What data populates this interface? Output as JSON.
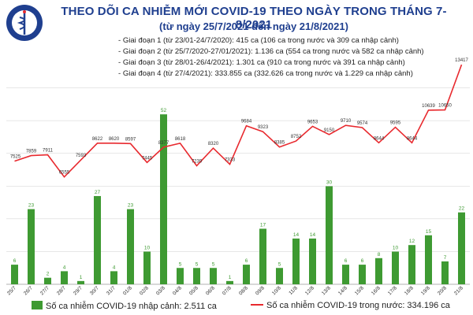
{
  "header": {
    "title": "THEO DÕI CA NHIỄM MỚI COVID-19 THEO NGÀY TRONG THÁNG 7-8/2021",
    "subtitle": "(từ ngày 25/7/2021 đến ngày 21/8/2021)",
    "logo_text": "BỘ Y TẾ",
    "phases": [
      "Giai đoạn 1 (từ 23/01-24/7/2020): 415 ca (106 ca trong nước và 309 ca nhập cảnh)",
      "Giai đoạn 2 (từ 25/7/2020-27/01/2021): 1.136 ca (554 ca trong nước và 582 ca nhập cảnh)",
      "Giai đoạn 3 (từ 28/01-26/4/2021): 1.301 ca (910 ca trong nước và 391 ca nhập cảnh)",
      "Giai đoạn 4 (từ 27/4/2021): 333.855 ca (332.626 ca trong nước và 1.229 ca nhập cảnh)"
    ]
  },
  "colors": {
    "title": "#1f3f8f",
    "bar": "#3e9a32",
    "line": "#e8292e",
    "grid": "#d9d9d9"
  },
  "legend": {
    "bar_label": "Số ca nhiễm COVID-19 nhập cảnh: 2.511 ca",
    "line_label": "Số ca nhiễm COVID-19 trong nước: 334.196 ca"
  },
  "chart_data": {
    "type": "bar+line",
    "categories": [
      "25/7",
      "26/7",
      "27/7",
      "28/7",
      "29/7",
      "30/7",
      "31/7",
      "01/8",
      "02/8",
      "03/8",
      "04/8",
      "05/8",
      "06/8",
      "07/8",
      "08/8",
      "09/8",
      "10/8",
      "11/8",
      "12/8",
      "13/8",
      "14/8",
      "15/8",
      "16/8",
      "17/8",
      "18/8",
      "19/8",
      "20/8",
      "21/8"
    ],
    "series": [
      {
        "name": "Số ca nhiễm COVID-19 nhập cảnh: 2.511 ca",
        "kind": "bar",
        "values": [
          6,
          23,
          2,
          4,
          1,
          27,
          4,
          23,
          10,
          52,
          5,
          5,
          5,
          1,
          6,
          17,
          5,
          14,
          14,
          30,
          6,
          6,
          8,
          10,
          12,
          15,
          7,
          22
        ]
      },
      {
        "name": "Số ca nhiễm COVID-19 trong nước: 334.196 ca",
        "kind": "line",
        "values": [
          7525,
          7859,
          7911,
          6555,
          7593,
          8622,
          8620,
          8597,
          7445,
          8377,
          8618,
          7239,
          8320,
          7333,
          9684,
          9323,
          8385,
          8752,
          9653,
          9150,
          9710,
          9574,
          8644,
          9595,
          8644,
          10639,
          10650,
          13417
        ]
      }
    ],
    "bar_ylim": [
      0,
      60
    ],
    "line_ylim": [
      0,
      14000
    ],
    "grid": true
  }
}
